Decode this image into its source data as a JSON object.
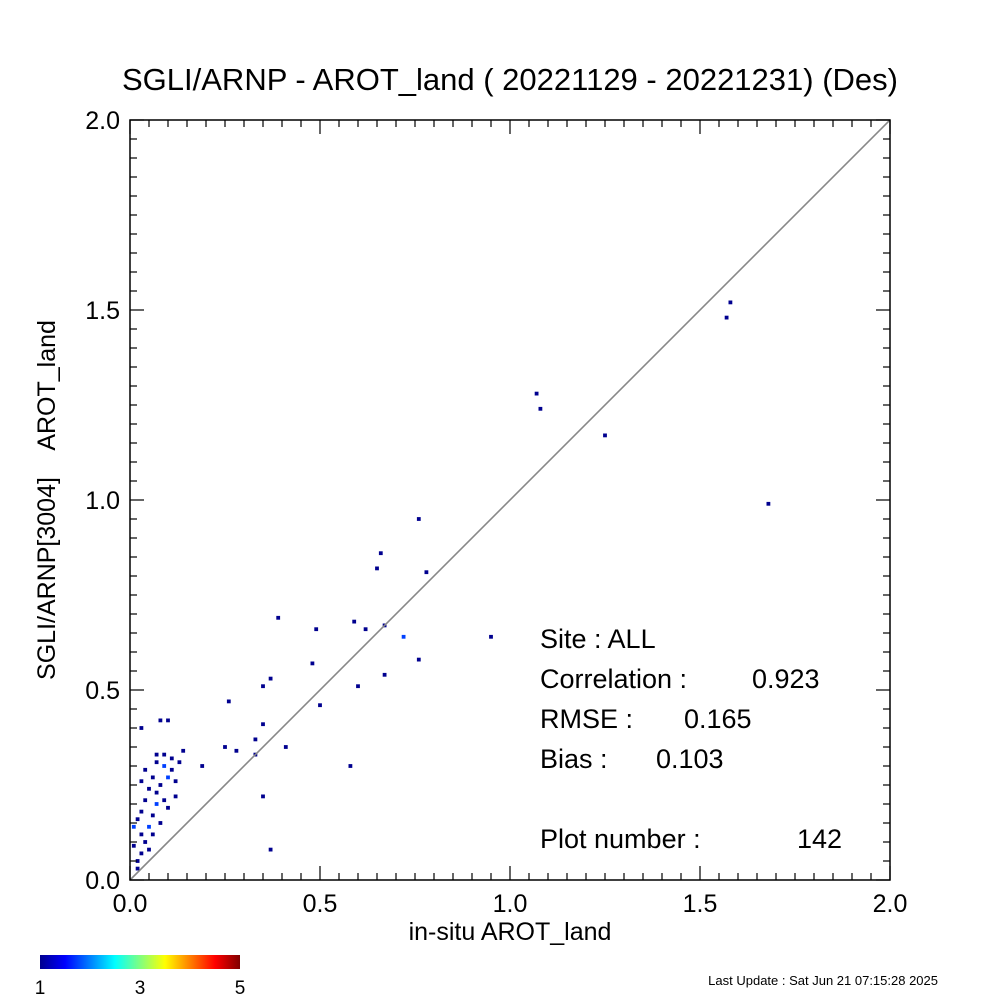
{
  "chart_data": {
    "type": "heatmap",
    "title": "SGLI/ARNP - AROT_land ( 20221129 - 20221231) (Des)",
    "xlabel": "in-situ AROT_land",
    "ylabel": "SGLI/ARNP[3004]    AROT_land",
    "xlim": [
      0.0,
      2.0
    ],
    "ylim": [
      0.0,
      2.0
    ],
    "x_ticks": [
      "0.0",
      "0.5",
      "1.0",
      "1.5",
      "2.0"
    ],
    "y_ticks": [
      "0.0",
      "0.5",
      "1.0",
      "1.5",
      "2.0"
    ],
    "grid": false,
    "one_to_one_line": true,
    "bin_size": 0.01,
    "bins": [
      {
        "x": 0.02,
        "y": 0.03,
        "count": 1
      },
      {
        "x": 0.02,
        "y": 0.05,
        "count": 1
      },
      {
        "x": 0.03,
        "y": 0.07,
        "count": 1
      },
      {
        "x": 0.01,
        "y": 0.14,
        "count": 2
      },
      {
        "x": 0.02,
        "y": 0.16,
        "count": 1
      },
      {
        "x": 0.03,
        "y": 0.12,
        "count": 1
      },
      {
        "x": 0.04,
        "y": 0.1,
        "count": 1
      },
      {
        "x": 0.03,
        "y": 0.18,
        "count": 1
      },
      {
        "x": 0.04,
        "y": 0.21,
        "count": 1
      },
      {
        "x": 0.05,
        "y": 0.14,
        "count": 2
      },
      {
        "x": 0.06,
        "y": 0.17,
        "count": 1
      },
      {
        "x": 0.05,
        "y": 0.24,
        "count": 1
      },
      {
        "x": 0.06,
        "y": 0.27,
        "count": 1
      },
      {
        "x": 0.07,
        "y": 0.2,
        "count": 2
      },
      {
        "x": 0.07,
        "y": 0.23,
        "count": 1
      },
      {
        "x": 0.08,
        "y": 0.15,
        "count": 1
      },
      {
        "x": 0.08,
        "y": 0.25,
        "count": 1
      },
      {
        "x": 0.03,
        "y": 0.26,
        "count": 1
      },
      {
        "x": 0.04,
        "y": 0.29,
        "count": 1
      },
      {
        "x": 0.07,
        "y": 0.31,
        "count": 1
      },
      {
        "x": 0.07,
        "y": 0.33,
        "count": 1
      },
      {
        "x": 0.09,
        "y": 0.3,
        "count": 2
      },
      {
        "x": 0.09,
        "y": 0.33,
        "count": 1
      },
      {
        "x": 0.11,
        "y": 0.32,
        "count": 1
      },
      {
        "x": 0.1,
        "y": 0.27,
        "count": 2
      },
      {
        "x": 0.12,
        "y": 0.26,
        "count": 1
      },
      {
        "x": 0.13,
        "y": 0.31,
        "count": 1
      },
      {
        "x": 0.14,
        "y": 0.34,
        "count": 1
      },
      {
        "x": 0.12,
        "y": 0.22,
        "count": 1
      },
      {
        "x": 0.1,
        "y": 0.19,
        "count": 1
      },
      {
        "x": 0.03,
        "y": 0.4,
        "count": 1
      },
      {
        "x": 0.08,
        "y": 0.42,
        "count": 1
      },
      {
        "x": 0.1,
        "y": 0.42,
        "count": 1
      },
      {
        "x": 0.05,
        "y": 0.08,
        "count": 1
      },
      {
        "x": 0.01,
        "y": 0.09,
        "count": 1
      },
      {
        "x": 0.06,
        "y": 0.12,
        "count": 1
      },
      {
        "x": 0.09,
        "y": 0.21,
        "count": 1
      },
      {
        "x": 0.11,
        "y": 0.29,
        "count": 1
      },
      {
        "x": 0.19,
        "y": 0.3,
        "count": 1
      },
      {
        "x": 0.25,
        "y": 0.35,
        "count": 1
      },
      {
        "x": 0.26,
        "y": 0.47,
        "count": 1
      },
      {
        "x": 0.28,
        "y": 0.34,
        "count": 1
      },
      {
        "x": 0.33,
        "y": 0.37,
        "count": 1
      },
      {
        "x": 0.33,
        "y": 0.33,
        "count": 1
      },
      {
        "x": 0.35,
        "y": 0.41,
        "count": 1
      },
      {
        "x": 0.35,
        "y": 0.51,
        "count": 1
      },
      {
        "x": 0.35,
        "y": 0.22,
        "count": 1
      },
      {
        "x": 0.37,
        "y": 0.53,
        "count": 1
      },
      {
        "x": 0.37,
        "y": 0.08,
        "count": 1
      },
      {
        "x": 0.39,
        "y": 0.69,
        "count": 1
      },
      {
        "x": 0.41,
        "y": 0.35,
        "count": 1
      },
      {
        "x": 0.48,
        "y": 0.57,
        "count": 1
      },
      {
        "x": 0.49,
        "y": 0.66,
        "count": 1
      },
      {
        "x": 0.5,
        "y": 0.46,
        "count": 1
      },
      {
        "x": 0.58,
        "y": 0.3,
        "count": 1
      },
      {
        "x": 0.59,
        "y": 0.68,
        "count": 1
      },
      {
        "x": 0.6,
        "y": 0.51,
        "count": 1
      },
      {
        "x": 0.62,
        "y": 0.66,
        "count": 1
      },
      {
        "x": 0.65,
        "y": 0.82,
        "count": 1
      },
      {
        "x": 0.66,
        "y": 0.86,
        "count": 1
      },
      {
        "x": 0.67,
        "y": 0.67,
        "count": 1
      },
      {
        "x": 0.67,
        "y": 0.54,
        "count": 1
      },
      {
        "x": 0.72,
        "y": 0.64,
        "count": 2
      },
      {
        "x": 0.76,
        "y": 0.95,
        "count": 1
      },
      {
        "x": 0.76,
        "y": 0.58,
        "count": 1
      },
      {
        "x": 0.78,
        "y": 0.81,
        "count": 1
      },
      {
        "x": 0.95,
        "y": 0.64,
        "count": 1
      },
      {
        "x": 1.07,
        "y": 1.28,
        "count": 1
      },
      {
        "x": 1.08,
        "y": 1.24,
        "count": 1
      },
      {
        "x": 1.25,
        "y": 1.17,
        "count": 1
      },
      {
        "x": 1.57,
        "y": 1.48,
        "count": 1
      },
      {
        "x": 1.58,
        "y": 1.52,
        "count": 1
      },
      {
        "x": 1.68,
        "y": 0.99,
        "count": 1
      }
    ],
    "colorbar": {
      "min": 1,
      "max": 5,
      "tick_labels": [
        "1",
        "3",
        "5"
      ],
      "colors": [
        "#00008f",
        "#0000ff",
        "#00ffff",
        "#ffff00",
        "#ff0000",
        "#800000"
      ]
    }
  },
  "stats": {
    "site": "Site : ALL",
    "correlation_label": "Correlation :",
    "correlation_value": "0.923",
    "rmse_label": "RMSE :",
    "rmse_value": "0.165",
    "bias_label": "Bias :",
    "bias_value": "0.103",
    "plot_number_label": "Plot number :",
    "plot_number_value": "142"
  },
  "footer": {
    "last_update": "Last Update : Sat Jun 21 07:15:28 2025"
  }
}
